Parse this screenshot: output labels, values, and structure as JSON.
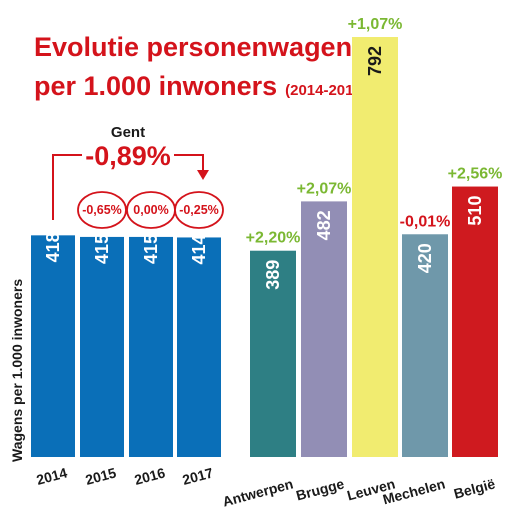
{
  "title_line1": "Evolutie personenwagens",
  "title_line2": "per 1.000 inwoners",
  "title_years": "(2014-2017)",
  "ylabel": "Wagens per 1.000 inwoners",
  "gent": {
    "label": "Gent",
    "total_change": "-0,89%",
    "years": [
      "2014",
      "2015",
      "2016",
      "2017"
    ],
    "values": [
      418,
      415,
      415,
      414
    ],
    "year_changes": [
      "",
      "-0,65%",
      "0,00%",
      "-0,25%"
    ],
    "color": "#0a6fb8"
  },
  "cities": {
    "categories": [
      "Antwerpen",
      "Brugge",
      "Leuven",
      "Mechelen",
      "België"
    ],
    "values": [
      389,
      482,
      792,
      420,
      510
    ],
    "changes": [
      "+2,20%",
      "+2,07%",
      "+1,07%",
      "-0,01%",
      "+2,56%"
    ],
    "colors": [
      "#2e7f84",
      "#928eb5",
      "#f1ec70",
      "#6f98aa",
      "#cf1a1f"
    ],
    "value_text_colors": [
      "#ffffff",
      "#ffffff",
      "#1a1a1a",
      "#ffffff",
      "#ffffff"
    ],
    "change_colors": [
      "#7bb833",
      "#7bb833",
      "#7bb833",
      "#d4131b",
      "#7bb833"
    ]
  },
  "chart_data": {
    "type": "bar",
    "title": "Evolutie personenwagens per 1.000 inwoners (2014-2017)",
    "ylabel": "Wagens per 1.000 inwoners",
    "categories": [
      "2014",
      "2015",
      "2016",
      "2017",
      "Antwerpen",
      "Brugge",
      "Leuven",
      "Mechelen",
      "België"
    ],
    "values": [
      418,
      415,
      415,
      414,
      389,
      482,
      792,
      420,
      510
    ],
    "annotations": [
      "-0,89%",
      "-0,65%",
      "0,00%",
      "-0,25%",
      "+2,20%",
      "+2,07%",
      "+1,07%",
      "-0,01%",
      "+2,56%"
    ],
    "grid": false
  }
}
